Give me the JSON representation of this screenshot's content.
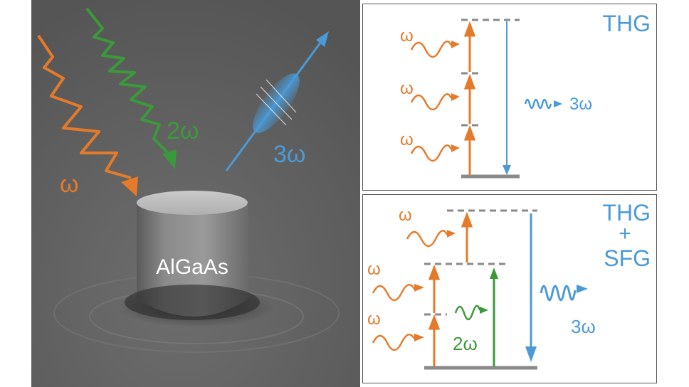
{
  "sem": {
    "material_label": "AlGaAs",
    "omega_label": "ω",
    "two_omega_label": "2ω",
    "three_omega_label": "3ω"
  },
  "thg": {
    "title": "THG",
    "inputs": [
      "ω",
      "ω",
      "ω"
    ],
    "output_label": "3ω"
  },
  "sfg": {
    "title_line1": "THG",
    "title_line2": "+",
    "title_line3": "SFG",
    "inputs": [
      "ω",
      "ω",
      "ω"
    ],
    "green_label": "2ω",
    "output_label": "3ω"
  },
  "colors": {
    "orange": "#e57b2a",
    "green": "#3a9a3a",
    "blue": "#4a9ad8",
    "level_gray": "#8a8a8a"
  }
}
